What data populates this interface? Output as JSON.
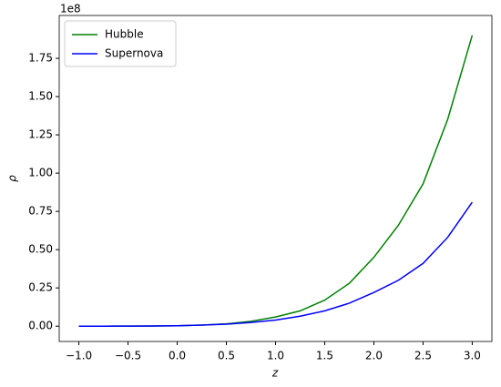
{
  "chart_data": {
    "type": "line",
    "x_label": "z",
    "y_label": "ρ",
    "y_offset_label": "1e8",
    "x": [
      -1.0,
      -0.75,
      -0.5,
      -0.25,
      0.0,
      0.25,
      0.5,
      0.75,
      1.0,
      1.25,
      1.5,
      1.75,
      2.0,
      2.25,
      2.5,
      2.75,
      3.0
    ],
    "series": [
      {
        "name": "Hubble",
        "color": "#008000",
        "values": [
          0,
          0.0,
          0.0002,
          0.001,
          0.003,
          0.007,
          0.015,
          0.032,
          0.06,
          0.1,
          0.17,
          0.28,
          0.45,
          0.66,
          0.93,
          1.35,
          1.9
        ]
      },
      {
        "name": "Supernova",
        "color": "#0000ff",
        "values": [
          0,
          0.0,
          0.0002,
          0.001,
          0.003,
          0.007,
          0.013,
          0.024,
          0.04,
          0.065,
          0.1,
          0.15,
          0.22,
          0.3,
          0.41,
          0.58,
          0.81
        ]
      }
    ],
    "xlim": [
      -1.2,
      3.2
    ],
    "ylim": [
      -0.1,
      2.03
    ],
    "xticks": [
      {
        "value": -1.0,
        "label": "−1.0"
      },
      {
        "value": -0.5,
        "label": "−0.5"
      },
      {
        "value": 0.0,
        "label": "0.0"
      },
      {
        "value": 0.5,
        "label": "0.5"
      },
      {
        "value": 1.0,
        "label": "1.0"
      },
      {
        "value": 1.5,
        "label": "1.5"
      },
      {
        "value": 2.0,
        "label": "2.0"
      },
      {
        "value": 2.5,
        "label": "2.5"
      },
      {
        "value": 3.0,
        "label": "3.0"
      }
    ],
    "yticks": [
      {
        "value": 0,
        "label": "0.00"
      },
      {
        "value": 0.25,
        "label": "0.25"
      },
      {
        "value": 0.5,
        "label": "0.50"
      },
      {
        "value": 0.75,
        "label": "0.75"
      },
      {
        "value": 1.0,
        "label": "1.00"
      },
      {
        "value": 1.25,
        "label": "1.25"
      },
      {
        "value": 1.5,
        "label": "1.50"
      },
      {
        "value": 1.75,
        "label": "1.75"
      }
    ],
    "legend": "upper left",
    "grid": false
  }
}
